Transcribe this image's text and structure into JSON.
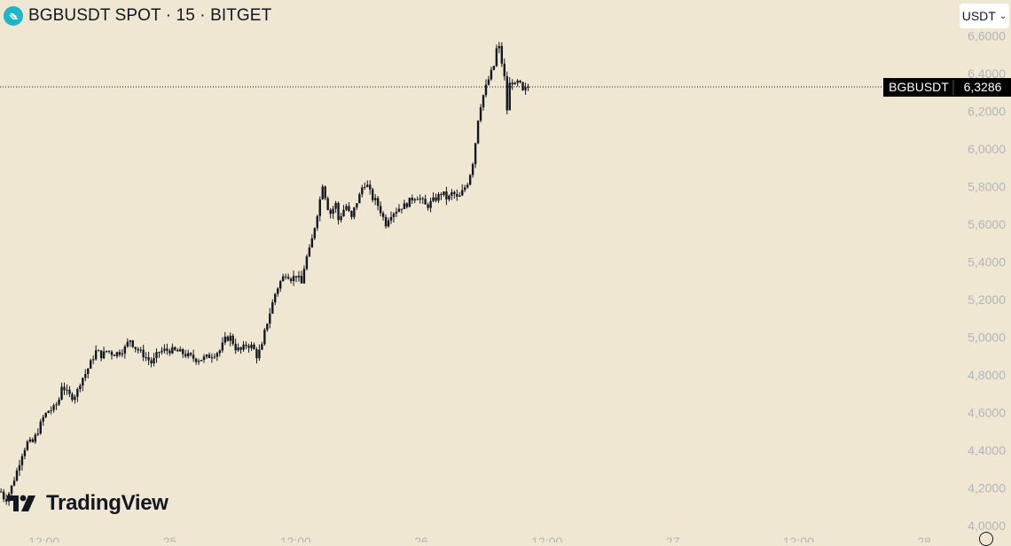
{
  "header": {
    "title": "BGBUSDT SPOT · 15 · BITGET",
    "currency": "USDT"
  },
  "logo": {
    "text": "TradingView"
  },
  "price_tag": {
    "symbol": "BGBUSDT",
    "value": "6,3286"
  },
  "colors": {
    "background": "#efe7d2",
    "candle": "#131722",
    "axis_text": "#b2b5be",
    "accent_icon": "#1fb5c9"
  },
  "chart_data": {
    "type": "candlestick",
    "title": "BGBUSDT SPOT · 15 · BITGET",
    "y_tick_labels": [
      "6,6000",
      "6,4000",
      "6,2000",
      "6,0000",
      "5,8000",
      "5,6000",
      "5,4000",
      "5,2000",
      "5,0000",
      "4,8000",
      "4,6000",
      "4,4000",
      "4,2000",
      "4,0000"
    ],
    "y_ticks": [
      6.6,
      6.4,
      6.2,
      6.0,
      5.8,
      5.6,
      5.4,
      5.2,
      5.0,
      4.8,
      4.6,
      4.4,
      4.2,
      4.0
    ],
    "ylim": [
      3.99,
      6.79
    ],
    "x_tick_labels": [
      "12:00",
      "25",
      "12:00",
      "26",
      "12:00",
      "27",
      "12:00",
      "28"
    ],
    "x_ticks_hours": [
      12,
      24,
      36,
      48,
      60,
      72,
      84,
      96
    ],
    "xlim_hours": [
      7.8,
      99.2
    ],
    "candle_interval_minutes": 15,
    "last_price": 6.3286,
    "path_points": [
      [
        7.9,
        4.18
      ],
      [
        8.3,
        4.13
      ],
      [
        8.8,
        4.19
      ],
      [
        9.3,
        4.27
      ],
      [
        9.9,
        4.38
      ],
      [
        10.4,
        4.44
      ],
      [
        10.9,
        4.44
      ],
      [
        11.4,
        4.5
      ],
      [
        11.9,
        4.57
      ],
      [
        12.4,
        4.61
      ],
      [
        12.9,
        4.62
      ],
      [
        13.4,
        4.66
      ],
      [
        13.7,
        4.75
      ],
      [
        14.1,
        4.71
      ],
      [
        14.6,
        4.68
      ],
      [
        15.1,
        4.7
      ],
      [
        15.5,
        4.77
      ],
      [
        16.0,
        4.81
      ],
      [
        16.5,
        4.87
      ],
      [
        17.0,
        4.93
      ],
      [
        17.5,
        4.9
      ],
      [
        18.0,
        4.93
      ],
      [
        18.6,
        4.91
      ],
      [
        19.2,
        4.92
      ],
      [
        19.7,
        4.94
      ],
      [
        20.2,
        4.99
      ],
      [
        20.6,
        4.95
      ],
      [
        21.2,
        4.92
      ],
      [
        21.8,
        4.89
      ],
      [
        22.3,
        4.86
      ],
      [
        22.9,
        4.92
      ],
      [
        23.5,
        4.93
      ],
      [
        24.2,
        4.93
      ],
      [
        25.0,
        4.92
      ],
      [
        25.8,
        4.9
      ],
      [
        26.6,
        4.88
      ],
      [
        27.4,
        4.89
      ],
      [
        28.2,
        4.91
      ],
      [
        28.8,
        4.93
      ],
      [
        29.3,
        4.99
      ],
      [
        29.8,
        5.0
      ],
      [
        30.3,
        4.94
      ],
      [
        30.8,
        4.93
      ],
      [
        31.3,
        4.96
      ],
      [
        31.9,
        4.95
      ],
      [
        32.3,
        4.9
      ],
      [
        32.8,
        4.95
      ],
      [
        33.1,
        5.04
      ],
      [
        33.6,
        5.14
      ],
      [
        34.1,
        5.24
      ],
      [
        34.6,
        5.3
      ],
      [
        35.1,
        5.34
      ],
      [
        35.6,
        5.31
      ],
      [
        36.1,
        5.33
      ],
      [
        36.6,
        5.28
      ],
      [
        36.9,
        5.4
      ],
      [
        37.4,
        5.47
      ],
      [
        37.8,
        5.58
      ],
      [
        38.3,
        5.72
      ],
      [
        38.6,
        5.82
      ],
      [
        39.0,
        5.7
      ],
      [
        39.4,
        5.65
      ],
      [
        39.8,
        5.72
      ],
      [
        40.1,
        5.62
      ],
      [
        40.5,
        5.67
      ],
      [
        40.9,
        5.7
      ],
      [
        41.3,
        5.62
      ],
      [
        41.7,
        5.7
      ],
      [
        42.1,
        5.75
      ],
      [
        42.5,
        5.82
      ],
      [
        42.9,
        5.8
      ],
      [
        43.3,
        5.74
      ],
      [
        43.7,
        5.72
      ],
      [
        44.2,
        5.66
      ],
      [
        44.6,
        5.6
      ],
      [
        45.0,
        5.65
      ],
      [
        45.5,
        5.67
      ],
      [
        46.0,
        5.69
      ],
      [
        46.5,
        5.7
      ],
      [
        47.0,
        5.73
      ],
      [
        47.5,
        5.75
      ],
      [
        48.0,
        5.73
      ],
      [
        48.5,
        5.69
      ],
      [
        49.0,
        5.72
      ],
      [
        49.5,
        5.74
      ],
      [
        50.0,
        5.77
      ],
      [
        50.5,
        5.73
      ],
      [
        51.0,
        5.77
      ],
      [
        51.5,
        5.73
      ],
      [
        52.0,
        5.78
      ],
      [
        52.5,
        5.83
      ],
      [
        53.0,
        5.95
      ],
      [
        53.5,
        6.2
      ],
      [
        54.0,
        6.3
      ],
      [
        54.5,
        6.38
      ],
      [
        55.0,
        6.45
      ],
      [
        55.3,
        6.58
      ],
      [
        55.6,
        6.48
      ],
      [
        55.9,
        6.4
      ],
      [
        56.2,
        6.2
      ],
      [
        56.5,
        6.38
      ],
      [
        56.9,
        6.33
      ],
      [
        57.3,
        6.36
      ],
      [
        57.7,
        6.3
      ],
      [
        58.2,
        6.33
      ]
    ],
    "candle_count": 201
  }
}
